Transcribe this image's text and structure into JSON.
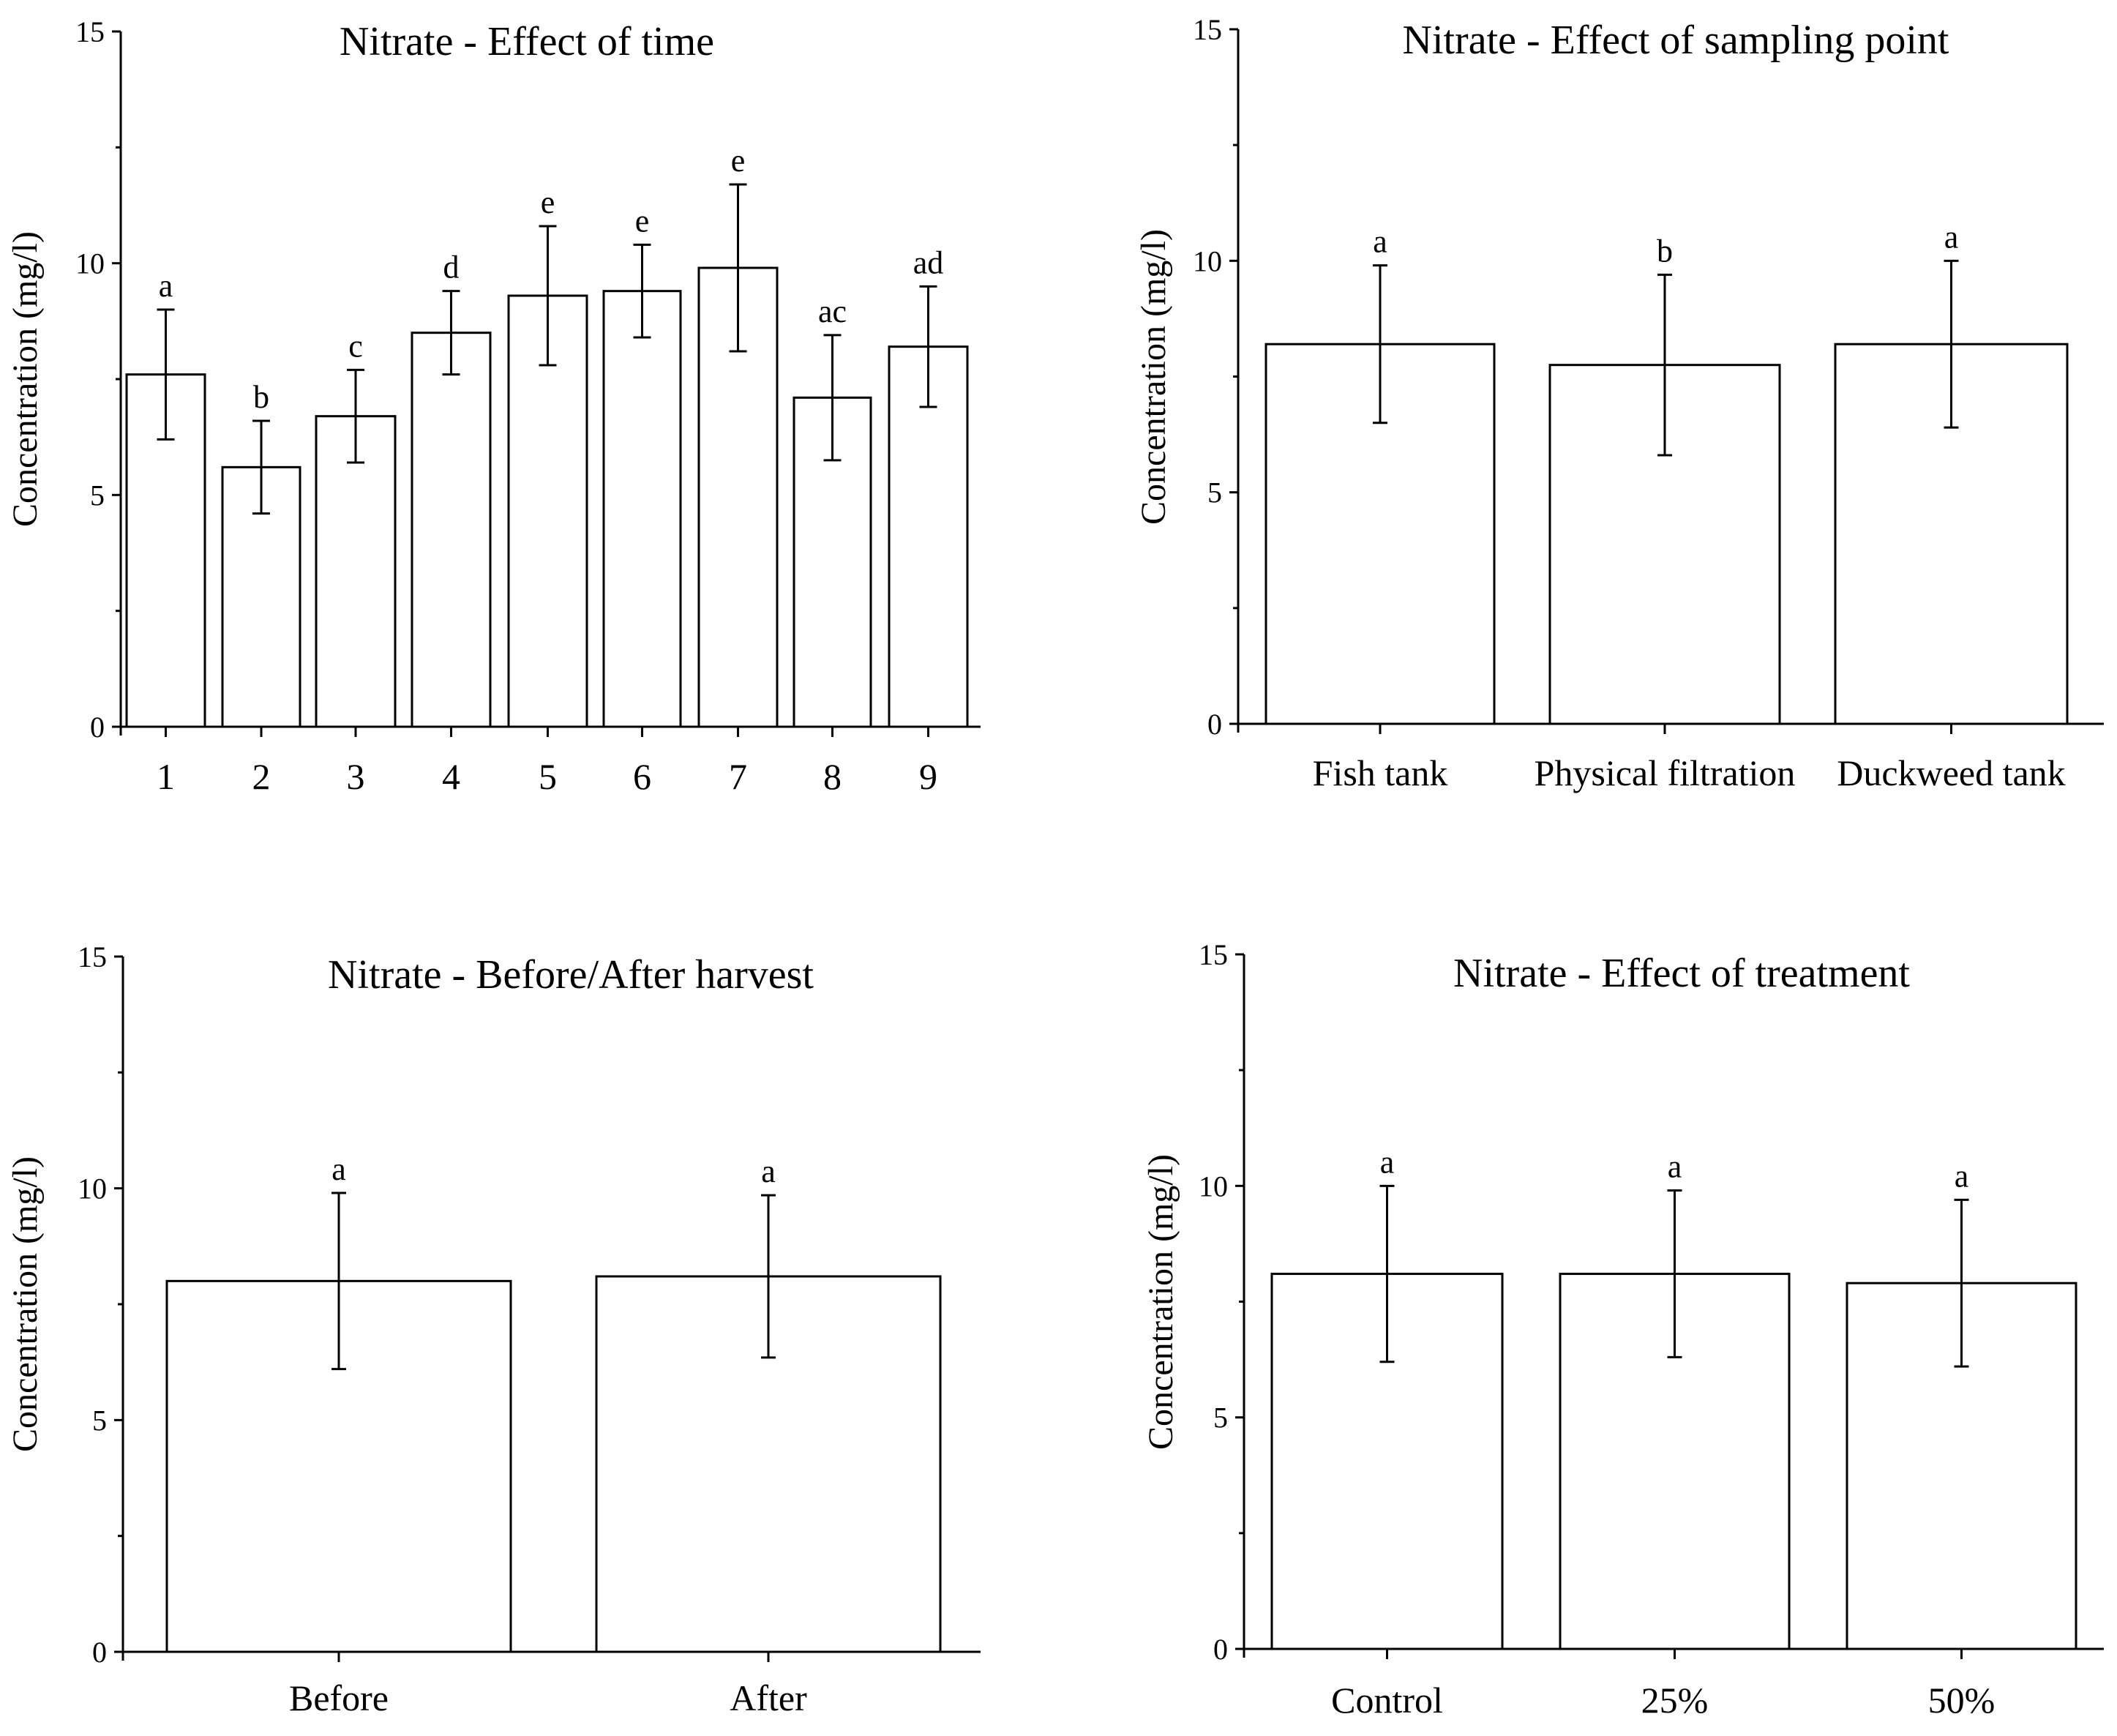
{
  "colors": {
    "ink": "#000000",
    "bar_fill": "#ffffff",
    "background": "#ffffff"
  },
  "chart_data": [
    {
      "type": "bar",
      "title": "Nitrate - Effect of time",
      "xlabel": "",
      "ylabel": "Concentration (mg/l)",
      "ylim": [
        0,
        15
      ],
      "yticks": [
        0,
        5,
        10,
        15
      ],
      "categories": [
        "1",
        "2",
        "3",
        "4",
        "5",
        "6",
        "7",
        "8",
        "9"
      ],
      "values": [
        7.6,
        5.6,
        6.7,
        8.5,
        9.3,
        9.4,
        9.9,
        7.1,
        8.2
      ],
      "errors": [
        1.4,
        1.0,
        1.0,
        0.9,
        1.5,
        1.0,
        1.8,
        1.35,
        1.3
      ],
      "significance": [
        "a",
        "b",
        "c",
        "d",
        "e",
        "e",
        "e",
        "ac",
        "ad"
      ],
      "grid": false
    },
    {
      "type": "bar",
      "title": "Nitrate - Effect of sampling point",
      "xlabel": "",
      "ylabel": "Concentration (mg/l)",
      "ylim": [
        0,
        15
      ],
      "yticks": [
        0,
        5,
        10,
        15
      ],
      "categories": [
        "Fish tank",
        "Physical filtration",
        "Duckweed tank"
      ],
      "values": [
        8.2,
        7.75,
        8.2
      ],
      "errors": [
        1.7,
        1.95,
        1.8
      ],
      "significance": [
        "a",
        "b",
        "a"
      ],
      "grid": false
    },
    {
      "type": "bar",
      "title": "Nitrate - Before/After harvest",
      "xlabel": "",
      "ylabel": "Concentration (mg/l)",
      "ylim": [
        0,
        15
      ],
      "yticks": [
        0,
        5,
        10,
        15
      ],
      "categories": [
        "Before",
        "After"
      ],
      "values": [
        8.0,
        8.1
      ],
      "errors": [
        1.9,
        1.75
      ],
      "significance": [
        "a",
        "a"
      ],
      "grid": false
    },
    {
      "type": "bar",
      "title": "Nitrate - Effect of treatment",
      "xlabel": "",
      "ylabel": "Concentration (mg/l)",
      "ylim": [
        0,
        15
      ],
      "yticks": [
        0,
        5,
        10,
        15
      ],
      "categories": [
        "Control",
        "25%",
        "50%"
      ],
      "values": [
        8.1,
        8.1,
        7.9
      ],
      "errors": [
        1.9,
        1.8,
        1.8
      ],
      "significance": [
        "a",
        "a",
        "a"
      ],
      "grid": false
    }
  ]
}
